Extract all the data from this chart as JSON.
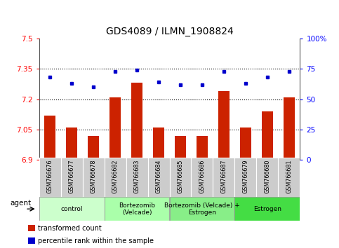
{
  "title": "GDS4089 / ILMN_1908824",
  "samples": [
    "GSM766676",
    "GSM766677",
    "GSM766678",
    "GSM766682",
    "GSM766683",
    "GSM766684",
    "GSM766685",
    "GSM766686",
    "GSM766687",
    "GSM766679",
    "GSM766680",
    "GSM766681"
  ],
  "bar_values": [
    7.12,
    7.06,
    7.02,
    7.21,
    7.28,
    7.06,
    7.02,
    7.02,
    7.24,
    7.06,
    7.14,
    7.21
  ],
  "dot_values": [
    68,
    63,
    60,
    73,
    74,
    64,
    62,
    62,
    73,
    63,
    68,
    73
  ],
  "bar_color": "#cc2200",
  "dot_color": "#0000cc",
  "ylim_left": [
    6.9,
    7.5
  ],
  "ylim_right": [
    0,
    100
  ],
  "yticks_left": [
    6.9,
    7.05,
    7.2,
    7.35,
    7.5
  ],
  "yticks_right": [
    0,
    25,
    50,
    75,
    100
  ],
  "ytick_labels_left": [
    "6.9",
    "7.05",
    "7.2",
    "7.35",
    "7.5"
  ],
  "ytick_labels_right": [
    "0",
    "25",
    "50",
    "75",
    "100%"
  ],
  "hlines": [
    7.05,
    7.2,
    7.35
  ],
  "groups": [
    {
      "label": "control",
      "start": 0,
      "end": 3,
      "color": "#ccffcc"
    },
    {
      "label": "Bortezomib\n(Velcade)",
      "start": 3,
      "end": 6,
      "color": "#aaffaa"
    },
    {
      "label": "Bortezomib (Velcade) +\nEstrogen",
      "start": 6,
      "end": 9,
      "color": "#88ee88"
    },
    {
      "label": "Estrogen",
      "start": 9,
      "end": 12,
      "color": "#44dd44"
    }
  ],
  "legend_items": [
    {
      "label": "transformed count",
      "color": "#cc2200"
    },
    {
      "label": "percentile rank within the sample",
      "color": "#0000cc"
    }
  ],
  "agent_label": "agent",
  "title_fontsize": 10,
  "bar_width": 0.5,
  "sample_box_color": "#cccccc",
  "spine_color": "#555555"
}
